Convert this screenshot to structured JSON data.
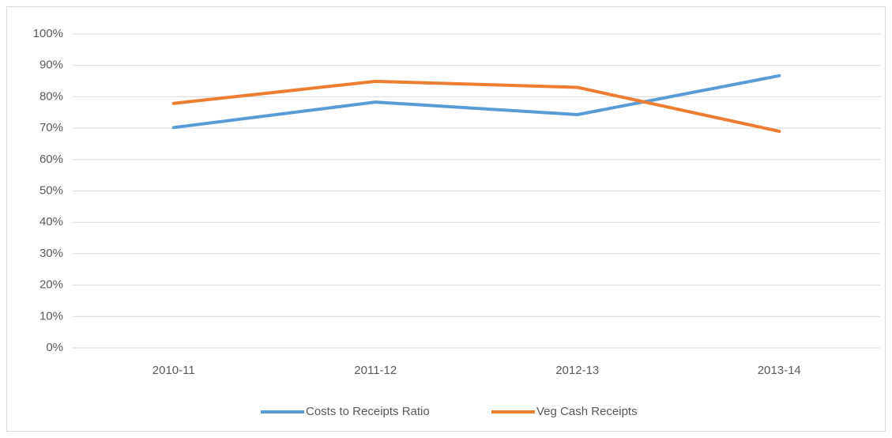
{
  "chart_data": {
    "type": "line",
    "categories": [
      "2010-11",
      "2011-12",
      "2012-13",
      "2013-14"
    ],
    "series": [
      {
        "name": "Costs to Receipts Ratio",
        "color": "#5b9bd5",
        "values": [
          70.2,
          78.3,
          74.3,
          86.7
        ]
      },
      {
        "name": "Veg Cash Receipts",
        "color": "#ed7d31",
        "values": [
          77.9,
          84.9,
          83.0,
          69.0
        ]
      }
    ],
    "ylim": [
      0,
      100
    ],
    "yticks": [
      {
        "value": 0,
        "label": "0%"
      },
      {
        "value": 10,
        "label": "10%"
      },
      {
        "value": 20,
        "label": "20%"
      },
      {
        "value": 30,
        "label": "30%"
      },
      {
        "value": 40,
        "label": "40%"
      },
      {
        "value": 50,
        "label": "50%"
      },
      {
        "value": 60,
        "label": "60%"
      },
      {
        "value": 70,
        "label": "70%"
      },
      {
        "value": 80,
        "label": "80%"
      },
      {
        "value": 90,
        "label": "90%"
      },
      {
        "value": 100,
        "label": "100%"
      }
    ],
    "grid": true,
    "legend": "bottom"
  }
}
